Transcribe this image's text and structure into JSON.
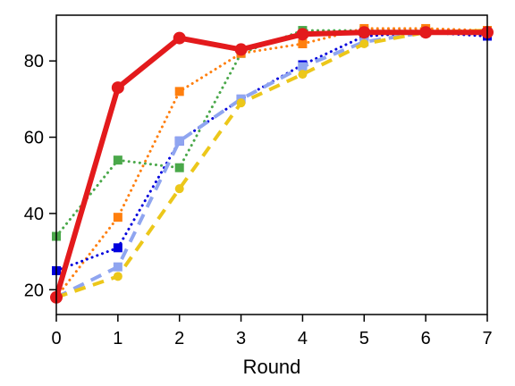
{
  "chart_data": {
    "type": "line",
    "title": "",
    "xlabel": "Round",
    "ylabel": "",
    "xlim": [
      0,
      7
    ],
    "ylim": [
      13.5,
      92
    ],
    "x_ticks": [
      0,
      1,
      2,
      3,
      4,
      5,
      6,
      7
    ],
    "y_ticks": [
      20,
      40,
      60,
      80
    ],
    "grid": false,
    "legend": "none",
    "x": [
      0,
      1,
      2,
      3,
      4,
      5,
      6,
      7
    ],
    "series": [
      {
        "color": "#4aa84a",
        "dash": "dotted",
        "marker": "square",
        "width": 3,
        "values": [
          34,
          54,
          52,
          82,
          88,
          88,
          88,
          88
        ]
      },
      {
        "color": "#ff7f0e",
        "dash": "dotted",
        "marker": "square",
        "width": 3,
        "values": [
          18,
          39,
          72,
          82,
          84.5,
          88.5,
          88.5,
          88
        ]
      },
      {
        "color": "#0000dd",
        "dash": "dotted",
        "marker": "square",
        "width": 3,
        "values": [
          25,
          31,
          59,
          70,
          79,
          86.5,
          87.5,
          86.5
        ]
      },
      {
        "color": "#8fa5f0",
        "dash": "dashed",
        "marker": "square",
        "width": 4,
        "values": [
          18,
          26,
          59,
          70,
          78.5,
          85,
          87.5,
          87.5
        ]
      },
      {
        "color": "#ecc71a",
        "dash": "dashed",
        "marker": "circle",
        "width": 4,
        "values": [
          18,
          23.5,
          46.5,
          69,
          76.5,
          84.5,
          87.5,
          88
        ]
      },
      {
        "color": "#e31a1c",
        "dash": "solid",
        "marker": "circle",
        "width": 6,
        "values": [
          18,
          73,
          86,
          83,
          87,
          87.5,
          87.5,
          87.5
        ]
      }
    ]
  }
}
